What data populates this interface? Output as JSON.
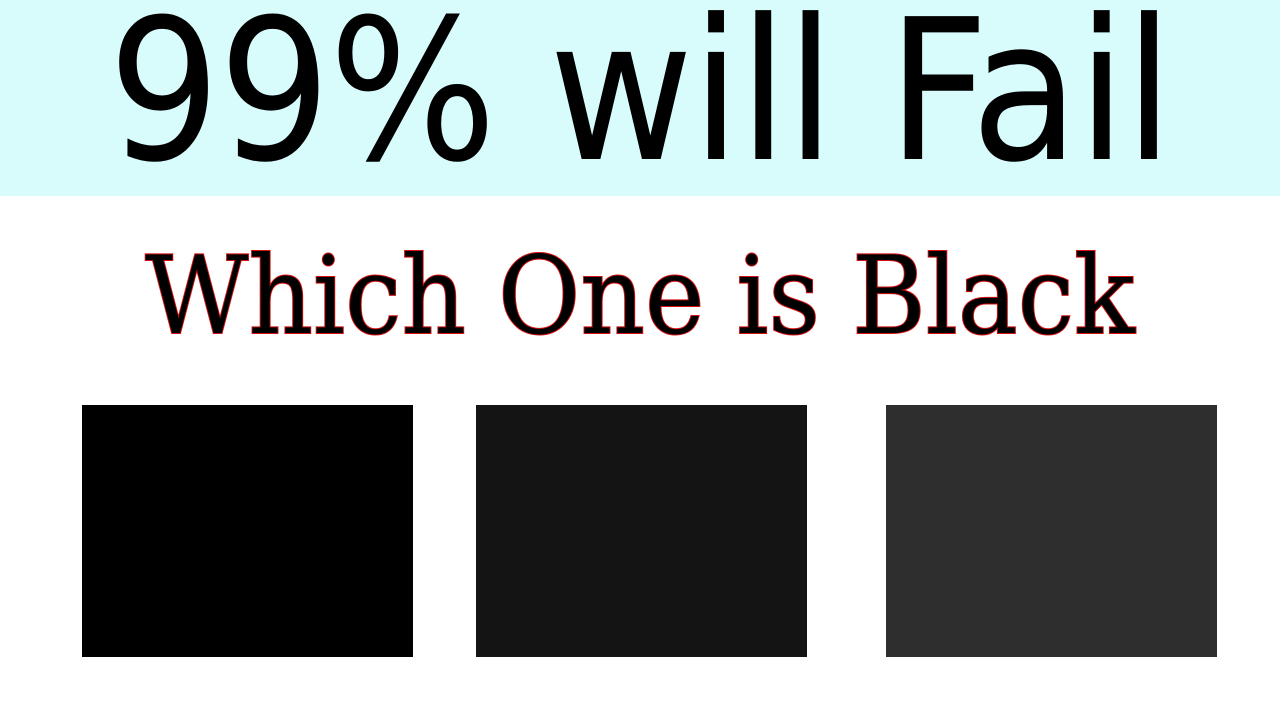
{
  "banner": {
    "headline": "99% will Fail",
    "background_color": "#d8fbfb"
  },
  "question": {
    "text": "Which One is Black",
    "outline_color": "#d41010"
  },
  "swatches": [
    {
      "color": "#000000"
    },
    {
      "color": "#141414"
    },
    {
      "color": "#2e2e2e"
    }
  ]
}
